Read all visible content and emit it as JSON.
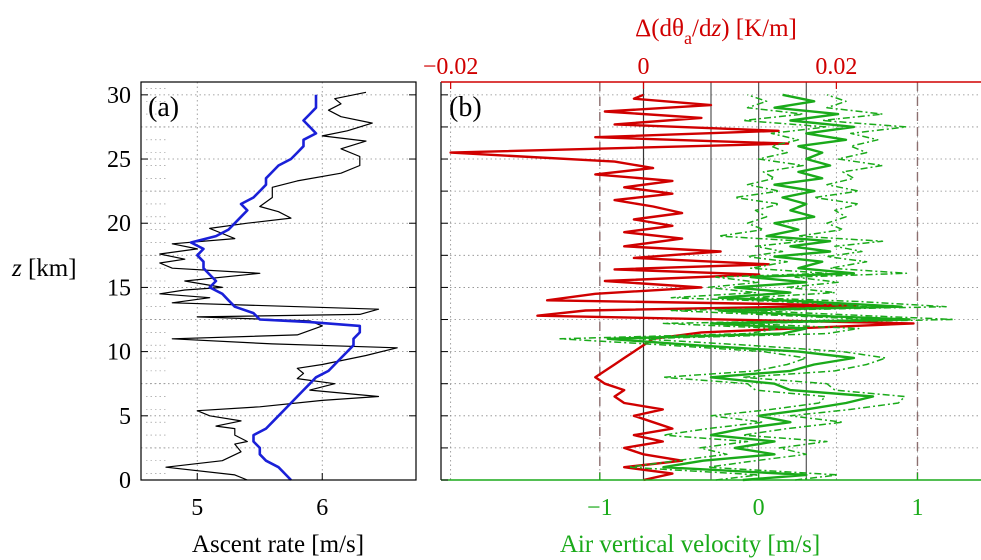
{
  "colors": {
    "red": "#d00000",
    "green": "#1aaa1a",
    "blue": "#1a20d8",
    "black": "#000000",
    "grid": "#8a8a8a",
    "dashed": "#8c6f6f"
  },
  "chart_data": [
    {
      "type": "line",
      "panel_label": "(a)",
      "xlabel": "Ascent rate [m/s]",
      "ylabel_italic": "z",
      "ylabel_rest": " [km]",
      "xlim": [
        4.55,
        6.75
      ],
      "ylim": [
        0,
        31
      ],
      "xticks": [
        5,
        6
      ],
      "yticks": [
        0,
        5,
        10,
        15,
        20,
        25,
        30
      ],
      "grid": true,
      "series": [
        {
          "color": "#000000",
          "style": "thin",
          "points": [
            [
              5.4,
              0
            ],
            [
              5.3,
              0.4
            ],
            [
              4.75,
              1.0
            ],
            [
              5.2,
              1.5
            ],
            [
              5.35,
              2.2
            ],
            [
              5.3,
              2.8
            ],
            [
              5.4,
              3.0
            ],
            [
              5.3,
              3.5
            ],
            [
              5.3,
              4.0
            ],
            [
              5.15,
              4.2
            ],
            [
              5.35,
              4.6
            ],
            [
              5.1,
              5.0
            ],
            [
              5.0,
              5.4
            ],
            [
              5.5,
              5.7
            ],
            [
              6.0,
              6.2
            ],
            [
              6.45,
              6.5
            ],
            [
              5.9,
              7.0
            ],
            [
              6.1,
              7.5
            ],
            [
              5.8,
              7.9
            ],
            [
              5.85,
              8.3
            ],
            [
              5.8,
              8.7
            ],
            [
              6.0,
              9.0
            ],
            [
              6.35,
              9.7
            ],
            [
              6.6,
              10.3
            ],
            [
              5.6,
              10.6
            ],
            [
              4.8,
              11.0
            ],
            [
              5.8,
              11.3
            ],
            [
              6.0,
              12.0
            ],
            [
              5.9,
              12.4
            ],
            [
              5.0,
              12.7
            ],
            [
              6.3,
              12.9
            ],
            [
              6.45,
              13.3
            ],
            [
              4.8,
              13.8
            ],
            [
              5.1,
              14.2
            ],
            [
              4.7,
              14.5
            ],
            [
              4.9,
              14.8
            ],
            [
              5.2,
              15.0
            ],
            [
              4.9,
              15.5
            ],
            [
              5.5,
              16.1
            ],
            [
              4.8,
              16.5
            ],
            [
              4.7,
              16.9
            ],
            [
              4.9,
              17.2
            ],
            [
              4.7,
              17.6
            ],
            [
              5.0,
              18.0
            ],
            [
              4.8,
              18.4
            ],
            [
              5.3,
              18.8
            ],
            [
              5.2,
              19.2
            ],
            [
              5.1,
              19.6
            ],
            [
              5.4,
              20.0
            ],
            [
              5.75,
              20.4
            ],
            [
              5.65,
              20.9
            ],
            [
              5.5,
              21.3
            ],
            [
              5.6,
              22.0
            ],
            [
              5.6,
              22.8
            ],
            [
              5.8,
              23.3
            ],
            [
              6.15,
              23.9
            ],
            [
              6.3,
              24.5
            ],
            [
              6.3,
              25.2
            ],
            [
              6.15,
              25.8
            ],
            [
              6.35,
              26.4
            ],
            [
              6.0,
              26.8
            ],
            [
              6.2,
              27.2
            ],
            [
              6.4,
              27.8
            ],
            [
              6.15,
              28.3
            ],
            [
              6.05,
              28.8
            ],
            [
              6.15,
              29.3
            ],
            [
              6.1,
              29.7
            ],
            [
              6.35,
              30.2
            ]
          ]
        },
        {
          "color": "#1a20d8",
          "style": "thick",
          "points": [
            [
              5.75,
              0
            ],
            [
              5.7,
              0.5
            ],
            [
              5.65,
              1.0
            ],
            [
              5.55,
              1.5
            ],
            [
              5.5,
              2.0
            ],
            [
              5.5,
              2.5
            ],
            [
              5.45,
              3.0
            ],
            [
              5.45,
              3.5
            ],
            [
              5.55,
              4.0
            ],
            [
              5.6,
              4.5
            ],
            [
              5.65,
              5.0
            ],
            [
              5.7,
              5.5
            ],
            [
              5.75,
              6.0
            ],
            [
              5.8,
              6.5
            ],
            [
              5.85,
              7.0
            ],
            [
              5.9,
              7.5
            ],
            [
              5.95,
              8.0
            ],
            [
              6.05,
              8.5
            ],
            [
              6.1,
              9.0
            ],
            [
              6.15,
              9.5
            ],
            [
              6.2,
              10.0
            ],
            [
              6.25,
              10.5
            ],
            [
              6.25,
              11.0
            ],
            [
              6.3,
              11.5
            ],
            [
              6.3,
              12.0
            ],
            [
              5.9,
              12.3
            ],
            [
              5.5,
              12.5
            ],
            [
              5.45,
              13.0
            ],
            [
              5.3,
              13.5
            ],
            [
              5.25,
              14.0
            ],
            [
              5.2,
              14.5
            ],
            [
              5.1,
              15.0
            ],
            [
              5.15,
              15.5
            ],
            [
              5.1,
              16.0
            ],
            [
              5.05,
              16.5
            ],
            [
              5.05,
              17.0
            ],
            [
              5.0,
              17.5
            ],
            [
              5.05,
              18.0
            ],
            [
              4.95,
              18.5
            ],
            [
              5.15,
              19.0
            ],
            [
              5.25,
              19.5
            ],
            [
              5.3,
              20.0
            ],
            [
              5.35,
              20.5
            ],
            [
              5.4,
              21.0
            ],
            [
              5.35,
              21.5
            ],
            [
              5.45,
              22.0
            ],
            [
              5.5,
              22.5
            ],
            [
              5.55,
              23.0
            ],
            [
              5.55,
              23.5
            ],
            [
              5.6,
              24.0
            ],
            [
              5.65,
              24.5
            ],
            [
              5.75,
              25.0
            ],
            [
              5.8,
              25.5
            ],
            [
              5.85,
              26.0
            ],
            [
              5.85,
              26.5
            ],
            [
              5.95,
              27.0
            ],
            [
              5.9,
              27.5
            ],
            [
              5.85,
              28.0
            ],
            [
              5.9,
              28.5
            ],
            [
              5.95,
              29.0
            ],
            [
              5.95,
              29.5
            ],
            [
              5.95,
              30.0
            ]
          ]
        }
      ]
    },
    {
      "type": "line",
      "panel_label": "(b)",
      "xlabel": "Air vertical velocity [m/s]",
      "xlim": [
        -2.0,
        1.4
      ],
      "xticks": [
        -1,
        0,
        1
      ],
      "ylim": [
        0,
        31
      ],
      "top_axis": {
        "label_parts": [
          "Δ(dθ",
          "a",
          "/d",
          "z",
          ") [K/m]"
        ],
        "xlim": [
          -0.021,
          0.035
        ],
        "xticks": [
          -0.02,
          0,
          0.02
        ],
        "tick_labels": [
          "−0.02",
          "0",
          "0.02"
        ]
      },
      "vlines_dashed": [
        -1,
        1
      ],
      "vlines_solid_green_axis": [
        -0.3,
        0,
        0.3
      ],
      "vlines_solid_top_axis": [
        0
      ],
      "grid": true,
      "series": [
        {
          "axis": "top",
          "color": "#d00000",
          "style": "thick",
          "points": [
            [
              0,
              0
            ],
            [
              0.003,
              0.5
            ],
            [
              -0.002,
              1.0
            ],
            [
              0.004,
              1.5
            ],
            [
              0,
              2.0
            ],
            [
              -0.002,
              2.5
            ],
            [
              0.002,
              3.0
            ],
            [
              -0.001,
              3.5
            ],
            [
              0.003,
              4.0
            ],
            [
              0.001,
              4.5
            ],
            [
              -0.001,
              5.0
            ],
            [
              0.002,
              5.5
            ],
            [
              -0.002,
              6.0
            ],
            [
              -0.003,
              6.5
            ],
            [
              -0.002,
              7.0
            ],
            [
              -0.004,
              7.5
            ],
            [
              -0.005,
              8.0
            ],
            [
              -0.004,
              8.5
            ],
            [
              -0.003,
              9.0
            ],
            [
              -0.002,
              9.5
            ],
            [
              -0.001,
              10.0
            ],
            [
              0,
              10.5
            ],
            [
              0.001,
              11.0
            ],
            [
              0.006,
              11.5
            ],
            [
              0.028,
              12.2
            ],
            [
              -0.011,
              12.8
            ],
            [
              -0.006,
              13.2
            ],
            [
              0.022,
              13.6
            ],
            [
              -0.01,
              14.0
            ],
            [
              -0.005,
              14.5
            ],
            [
              0.006,
              15.0
            ],
            [
              -0.004,
              15.5
            ],
            [
              0.012,
              16.0
            ],
            [
              -0.003,
              16.4
            ],
            [
              0.013,
              16.8
            ],
            [
              -0.001,
              17.3
            ],
            [
              0.008,
              17.8
            ],
            [
              -0.002,
              18.2
            ],
            [
              0.004,
              18.8
            ],
            [
              -0.002,
              19.3
            ],
            [
              0.003,
              19.8
            ],
            [
              -0.001,
              20.3
            ],
            [
              0.004,
              20.8
            ],
            [
              0.001,
              21.3
            ],
            [
              -0.003,
              21.8
            ],
            [
              0.003,
              22.3
            ],
            [
              -0.002,
              22.8
            ],
            [
              0.003,
              23.3
            ],
            [
              -0.005,
              23.8
            ],
            [
              0.001,
              24.3
            ],
            [
              -0.003,
              24.8
            ],
            [
              -0.02,
              25.5
            ],
            [
              0.015,
              26.2
            ],
            [
              -0.005,
              26.7
            ],
            [
              0.014,
              27.2
            ],
            [
              -0.003,
              27.7
            ],
            [
              0.006,
              28.2
            ],
            [
              -0.004,
              28.7
            ],
            [
              0.007,
              29.2
            ],
            [
              -0.001,
              29.7
            ],
            [
              0,
              30
            ]
          ]
        },
        {
          "axis": "bottom",
          "color": "#1aaa1a",
          "style": "thick",
          "points": [
            [
              -0.1,
              0
            ],
            [
              0.3,
              0.4
            ],
            [
              -0.6,
              1.0
            ],
            [
              -0.35,
              1.5
            ],
            [
              0.1,
              2.0
            ],
            [
              -0.15,
              2.5
            ],
            [
              0.1,
              3.0
            ],
            [
              -0.3,
              3.5
            ],
            [
              -0.1,
              4.0
            ],
            [
              0.2,
              4.5
            ],
            [
              0,
              5.0
            ],
            [
              0.3,
              5.5
            ],
            [
              0.55,
              6.0
            ],
            [
              0.72,
              6.5
            ],
            [
              0.2,
              7.0
            ],
            [
              0.1,
              7.5
            ],
            [
              -0.3,
              8.0
            ],
            [
              0.2,
              8.5
            ],
            [
              0.35,
              9.0
            ],
            [
              0.6,
              9.5
            ],
            [
              0.25,
              10.0
            ],
            [
              -0.4,
              10.5
            ],
            [
              -0.95,
              11.0
            ],
            [
              0.15,
              11.4
            ],
            [
              0.3,
              11.8
            ],
            [
              -0.3,
              12.2
            ],
            [
              0.95,
              12.5
            ],
            [
              0.35,
              12.8
            ],
            [
              -0.25,
              13.2
            ],
            [
              0.9,
              13.5
            ],
            [
              0.3,
              13.9
            ],
            [
              -0.25,
              14.2
            ],
            [
              0.2,
              14.6
            ],
            [
              -0.15,
              15.0
            ],
            [
              0.3,
              15.4
            ],
            [
              -0.05,
              15.8
            ],
            [
              0.6,
              16.1
            ],
            [
              0.25,
              16.5
            ],
            [
              0.4,
              17.0
            ],
            [
              0.1,
              17.4
            ],
            [
              0.45,
              17.8
            ],
            [
              0.2,
              18.2
            ],
            [
              0.45,
              18.6
            ],
            [
              0.05,
              19.0
            ],
            [
              0.25,
              19.5
            ],
            [
              0.1,
              20.0
            ],
            [
              0.35,
              20.5
            ],
            [
              0.2,
              21.0
            ],
            [
              0.3,
              21.5
            ],
            [
              0.15,
              22.0
            ],
            [
              0.35,
              22.5
            ],
            [
              0.1,
              23.0
            ],
            [
              0.4,
              23.5
            ],
            [
              0.25,
              24.0
            ],
            [
              0.45,
              24.5
            ],
            [
              0.3,
              25.0
            ],
            [
              0.4,
              25.5
            ],
            [
              0.25,
              26.0
            ],
            [
              0.55,
              26.5
            ],
            [
              0.3,
              27.0
            ],
            [
              0.6,
              27.5
            ],
            [
              0.2,
              28.0
            ],
            [
              0.5,
              28.5
            ],
            [
              0.1,
              29.0
            ],
            [
              0.35,
              29.5
            ],
            [
              0.15,
              30
            ]
          ]
        }
      ]
    }
  ]
}
